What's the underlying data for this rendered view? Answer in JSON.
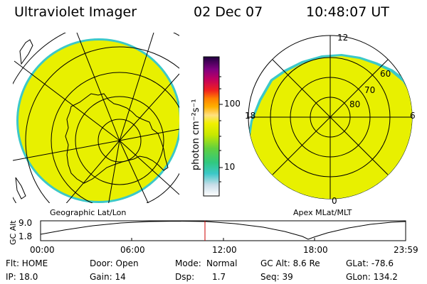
{
  "header": {
    "title": "Ultraviolet Imager",
    "date": "02 Dec 07",
    "time": "10:48:07 UT"
  },
  "colors": {
    "aurora_fill": "#e8f000",
    "aurora_edge": "#3cc8c8",
    "timeline_marker": "#cc0000"
  },
  "colorbar": {
    "unit": "photon cm⁻²s⁻¹",
    "ticks": [
      "100",
      "10"
    ],
    "scale": "log"
  },
  "panels": {
    "geographic": {
      "label": "Geographic Lat/Lon"
    },
    "apex": {
      "label": "Apex MLat/MLT",
      "mlt_labels": {
        "top": "12",
        "right": "6",
        "bottom": "0",
        "left": "18"
      },
      "lat_labels": [
        "60",
        "70",
        "80"
      ]
    }
  },
  "timeseries": {
    "ylabel": "GC Alt",
    "yticks": [
      "9.0",
      "1.8"
    ],
    "xticks": [
      "00:00",
      "06:00",
      "12:00",
      "18:00",
      "23:59"
    ],
    "current_time": "10:48:07"
  },
  "info": {
    "flt": "Flt: HOME",
    "ip": "IP: 18.0",
    "door": "Door: Open",
    "gain": "Gain: 14",
    "mode_label": "Mode:",
    "mode_value": "Normal",
    "dsp_label": "Dsp:",
    "dsp_value": "1.7",
    "gc_alt": "GC Alt: 8.6 Re",
    "seq": "Seq: 39",
    "glat": "GLat: -78.6",
    "glon": "GLon: 134.2"
  }
}
